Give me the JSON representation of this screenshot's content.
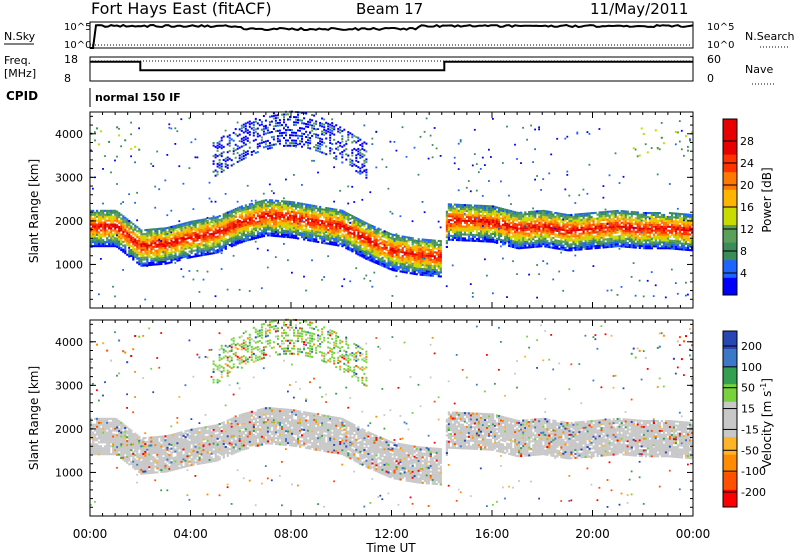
{
  "header": {
    "title": "Fort Hays East (fitACF)",
    "beam": "Beam 17",
    "date": "11/May/2011"
  },
  "params": {
    "nsky_label": "N.Sky",
    "nsky_ticks": [
      "10^5",
      "10^0"
    ],
    "nsearch_label": "N.Search",
    "freq_label": "Freq.",
    "freq_unit": "[MHz]",
    "freq_ticks": [
      "18",
      "8"
    ],
    "nave_label": "Nave",
    "nave_ticks": [
      "60",
      "0"
    ],
    "cpid_label": "CPID",
    "cpid_value": "normal 150 IF"
  },
  "colors": {
    "power_scale": [
      "#0000ff",
      "#1e64ff",
      "#3c8c5a",
      "#5aa05a",
      "#c8dc00",
      "#ffb400",
      "#ff7800",
      "#ff3200",
      "#e60000"
    ],
    "velocity_scale": [
      "#2846b4",
      "#3c78c8",
      "#32a050",
      "#78d23c",
      "#c8c8c8",
      "#c8c8c8",
      "#ffb428",
      "#ff8c00",
      "#ff5000",
      "#ff0000"
    ]
  },
  "chart_data": [
    {
      "type": "heatmap",
      "panel": "power",
      "xlabel": "Time UT",
      "ylabel": "Slant Range [km]",
      "x_ticks": [
        "00:00",
        "04:00",
        "08:00",
        "12:00",
        "16:00",
        "20:00",
        "00:00"
      ],
      "xlim_hours": [
        0,
        24
      ],
      "y_ticks": [
        "1000",
        "2000",
        "3000",
        "4000"
      ],
      "ylim": [
        0,
        4500
      ],
      "colorbar_label": "Power [dB]",
      "colorbar_ticks": [
        "4",
        "8",
        "12",
        "16",
        "20",
        "24",
        "28"
      ],
      "colorbar_range": [
        0,
        32
      ],
      "main_echo_band_range_km": [
        [
          0,
          1850
        ],
        [
          1,
          1850
        ],
        [
          2,
          1400
        ],
        [
          3,
          1450
        ],
        [
          4,
          1600
        ],
        [
          5,
          1700
        ],
        [
          6,
          1950
        ],
        [
          7,
          2100
        ],
        [
          8,
          2050
        ],
        [
          9,
          1950
        ],
        [
          10,
          1850
        ],
        [
          11,
          1550
        ],
        [
          12,
          1300
        ],
        [
          13,
          1200
        ],
        [
          14,
          1150
        ],
        [
          14.2,
          2000
        ],
        [
          16,
          1950
        ],
        [
          17,
          1800
        ],
        [
          18,
          1850
        ],
        [
          19,
          1750
        ],
        [
          20,
          1800
        ],
        [
          21,
          1850
        ],
        [
          22,
          1800
        ],
        [
          23,
          1800
        ],
        [
          24,
          1750
        ]
      ]
    },
    {
      "type": "heatmap",
      "panel": "velocity",
      "xlabel": "Time UT",
      "ylabel": "Slant Range [km]",
      "x_ticks": [
        "00:00",
        "04:00",
        "08:00",
        "12:00",
        "16:00",
        "20:00",
        "00:00"
      ],
      "xlim_hours": [
        0,
        24
      ],
      "y_ticks": [
        "1000",
        "2000",
        "3000",
        "4000"
      ],
      "ylim": [
        0,
        4500
      ],
      "colorbar_label": "Velocity [m s^-1]",
      "colorbar_ticks": [
        "200",
        "100",
        "50",
        "15",
        "-15",
        "-50",
        "-100",
        "-200"
      ],
      "colorbar_range": [
        -250,
        250
      ]
    }
  ],
  "freq_series": {
    "xlim_hours": [
      0,
      24
    ],
    "ylim": [
      8,
      18
    ],
    "points": [
      [
        0,
        16
      ],
      [
        2,
        16
      ],
      [
        2,
        12.5
      ],
      [
        14.1,
        12.5
      ],
      [
        14.1,
        16
      ],
      [
        24,
        16
      ]
    ]
  }
}
